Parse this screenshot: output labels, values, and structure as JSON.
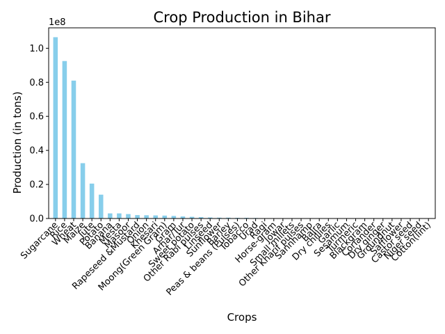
{
  "chart_data": {
    "type": "bar",
    "title": "Crop Production in Bihar",
    "xlabel": "Crops",
    "ylabel": "Production (in tons)",
    "y_offset_label": "1e8",
    "ylim": [
      0,
      1.12
    ],
    "yticks": [
      "0.0",
      "0.2",
      "0.4",
      "0.6",
      "0.8",
      "1.0"
    ],
    "ytick_values": [
      0,
      0.2,
      0.4,
      0.6,
      0.8,
      1.0
    ],
    "bar_color": "#87ceeb",
    "grid": false,
    "categories": [
      "Sugarcane",
      "Rice",
      "Wheat",
      "Maize",
      "Jute",
      "Potato",
      "Banana",
      "Mesta",
      "Masoor",
      "Rapeseed &Mustard",
      "Onion",
      "Khesari",
      "Moong(Green Gram)",
      "Gram",
      "Arhar/Tur",
      "Sweet potato",
      "Other Rabi pulses",
      "Linseed",
      "Sunflower",
      "Barley",
      "Peas & beans (Pulses)",
      "Tobacco",
      "Urad",
      "Ragi",
      "Horse-gram",
      "Jowar",
      "Small millets",
      "Other Kharif pulses",
      "Sannhamp",
      "Bajra",
      "Dry chillies",
      "Garlic",
      "Sesamum",
      "Turmeric",
      "Blackgram",
      "Coriander",
      "Dry ginger",
      "Groundnut",
      "Safflower",
      "Castor seed",
      "Niger seed",
      "Cotton(lint)"
    ],
    "values": [
      1.065,
      0.925,
      0.81,
      0.325,
      0.205,
      0.14,
      0.03,
      0.03,
      0.026,
      0.02,
      0.019,
      0.018,
      0.017,
      0.015,
      0.012,
      0.01,
      0.008,
      0.006,
      0.005,
      0.005,
      0.004,
      0.004,
      0.003,
      0.002,
      0.002,
      0.002,
      0.001,
      0.001,
      0.001,
      0.001,
      0.0005,
      0.0005,
      0.0005,
      0.0004,
      0.0003,
      0.0003,
      0.0002,
      0.0002,
      0.0001,
      0.0001,
      0.0001,
      0.0001
    ]
  }
}
